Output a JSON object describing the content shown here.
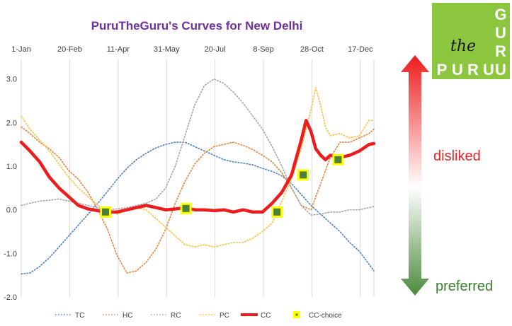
{
  "chart_data": {
    "type": "line",
    "title": "PuruTheGuru's Curves for New Delhi",
    "x_tick_labels": [
      "1-Jan",
      "20-Feb",
      "11-Apr",
      "31-May",
      "20-Jul",
      "8-Sep",
      "28-Oct",
      "17-Dec"
    ],
    "x_tick_days": [
      1,
      51,
      101,
      151,
      201,
      251,
      301,
      351
    ],
    "x_range_days": [
      1,
      365
    ],
    "y_ticks": [
      3.0,
      2.0,
      1.0,
      0.0,
      -1.0,
      -2.0
    ],
    "y_tick_labels": [
      "3.0",
      "2.0",
      "1.0",
      "0.0",
      "-1.0",
      "-2.0"
    ],
    "ylim": [
      -2.0,
      3.45
    ],
    "legend_position": "bottom",
    "series": [
      {
        "name": "TC",
        "style": "dotted",
        "color": "#4f81bd",
        "x_days": [
          1,
          10,
          20,
          30,
          40,
          50,
          60,
          70,
          80,
          90,
          100,
          110,
          120,
          130,
          140,
          150,
          160,
          170,
          180,
          190,
          200,
          210,
          220,
          230,
          240,
          250,
          260,
          270,
          280,
          290,
          300,
          310,
          320,
          330,
          340,
          350,
          360,
          365
        ],
        "values": [
          -1.47,
          -1.45,
          -1.3,
          -1.1,
          -0.85,
          -0.6,
          -0.35,
          -0.1,
          0.15,
          0.42,
          0.7,
          0.95,
          1.15,
          1.3,
          1.42,
          1.5,
          1.55,
          1.55,
          1.45,
          1.35,
          1.25,
          1.15,
          1.1,
          1.07,
          1.03,
          0.95,
          0.88,
          0.78,
          0.6,
          0.35,
          0.1,
          -0.1,
          -0.3,
          -0.5,
          -0.75,
          -0.95,
          -1.25,
          -1.4
        ]
      },
      {
        "name": "HC",
        "style": "dotted",
        "color": "#e8823a",
        "x_days": [
          1,
          10,
          20,
          30,
          40,
          50,
          60,
          70,
          80,
          90,
          100,
          110,
          120,
          130,
          140,
          150,
          160,
          170,
          180,
          190,
          200,
          210,
          220,
          230,
          240,
          250,
          260,
          270,
          280,
          290,
          300,
          310,
          320,
          330,
          340,
          350,
          360,
          365
        ],
        "values": [
          1.9,
          1.75,
          1.55,
          1.4,
          1.2,
          0.9,
          0.7,
          0.4,
          0.0,
          -0.45,
          -1.05,
          -1.45,
          -1.4,
          -1.2,
          -0.9,
          -0.45,
          0.15,
          0.65,
          1.05,
          1.3,
          1.45,
          1.5,
          1.55,
          1.48,
          1.38,
          1.25,
          1.1,
          0.85,
          0.5,
          0.1,
          0.0,
          0.6,
          1.2,
          1.55,
          1.55,
          1.65,
          1.75,
          1.85
        ]
      },
      {
        "name": "RC",
        "style": "dotted",
        "color": "#a5a5a5",
        "x_days": [
          1,
          10,
          20,
          30,
          40,
          50,
          60,
          70,
          80,
          90,
          100,
          110,
          120,
          130,
          140,
          150,
          160,
          170,
          180,
          190,
          200,
          210,
          220,
          230,
          240,
          250,
          260,
          270,
          280,
          290,
          300,
          310,
          320,
          330,
          340,
          350,
          360,
          365
        ],
        "values": [
          0.1,
          0.15,
          0.2,
          0.22,
          0.25,
          0.2,
          0.15,
          0.1,
          0.05,
          0.0,
          0.02,
          0.05,
          0.1,
          0.15,
          0.25,
          0.5,
          1.0,
          1.7,
          2.4,
          2.85,
          3.0,
          2.9,
          2.7,
          2.45,
          2.15,
          1.85,
          1.45,
          1.0,
          0.5,
          0.1,
          -0.12,
          -0.1,
          -0.05,
          -0.05,
          0.0,
          0.0,
          0.05,
          0.08
        ]
      },
      {
        "name": "PC",
        "style": "dotted",
        "color": "#f5c242",
        "x_days": [
          1,
          10,
          20,
          30,
          40,
          50,
          60,
          70,
          80,
          90,
          100,
          110,
          120,
          130,
          140,
          150,
          160,
          170,
          180,
          190,
          200,
          210,
          220,
          230,
          240,
          250,
          260,
          270,
          280,
          290,
          300,
          305,
          310,
          315,
          320,
          330,
          340,
          350,
          360,
          365
        ],
        "values": [
          2.15,
          1.85,
          1.6,
          1.35,
          1.05,
          0.75,
          0.5,
          0.3,
          0.1,
          0.0,
          -0.1,
          0.0,
          0.05,
          0.0,
          -0.2,
          -0.4,
          -0.6,
          -0.8,
          -0.85,
          -0.8,
          -0.85,
          -0.8,
          -0.75,
          -0.75,
          -0.65,
          -0.5,
          -0.3,
          0.2,
          0.7,
          1.4,
          2.3,
          2.8,
          2.4,
          1.9,
          1.7,
          1.75,
          1.65,
          1.7,
          2.05,
          2.05
        ]
      },
      {
        "name": "CC",
        "style": "solid-thick",
        "color": "#ee1c1c",
        "x_days": [
          1,
          10,
          20,
          30,
          40,
          50,
          60,
          70,
          80,
          90,
          100,
          110,
          120,
          130,
          140,
          150,
          160,
          170,
          180,
          190,
          200,
          210,
          220,
          230,
          240,
          250,
          260,
          270,
          280,
          290,
          295,
          300,
          305,
          310,
          315,
          320,
          330,
          340,
          350,
          360,
          365
        ],
        "values": [
          1.55,
          1.35,
          1.1,
          0.75,
          0.5,
          0.3,
          0.1,
          0.02,
          -0.02,
          -0.05,
          -0.05,
          0.0,
          0.05,
          0.1,
          0.05,
          0.0,
          0.02,
          0.05,
          0.0,
          0.0,
          -0.02,
          0.0,
          -0.05,
          0.0,
          -0.05,
          -0.05,
          0.15,
          0.4,
          0.8,
          1.6,
          2.05,
          1.8,
          1.4,
          1.25,
          1.15,
          1.25,
          1.2,
          1.25,
          1.35,
          1.5,
          1.52
        ]
      },
      {
        "name": "CC-choice",
        "style": "marker",
        "color": "#ffff00",
        "marker_fill": "#4b7f3a",
        "x_days": [
          88,
          171,
          265,
          292,
          328
        ],
        "values": [
          -0.05,
          0.03,
          -0.05,
          0.8,
          1.15
        ]
      }
    ]
  },
  "scale": {
    "top_label": "disliked",
    "bottom_label": "preferred",
    "top_label_color": "#e8232a",
    "bottom_label_color": "#3b7f2e",
    "gradient_colors": [
      "#ee1c1c",
      "#ffffff",
      "#4b8a3c"
    ]
  },
  "logo": {
    "background": "#8cc63f",
    "letters_vertical": [
      "G",
      "U",
      "R",
      "U"
    ],
    "letters_horizontal": [
      "P",
      "U",
      "R",
      "U"
    ],
    "script_text": "the"
  },
  "colors": {
    "title": "#7030a0",
    "axis_text": "#404040",
    "grid": "#d9d9d9"
  }
}
